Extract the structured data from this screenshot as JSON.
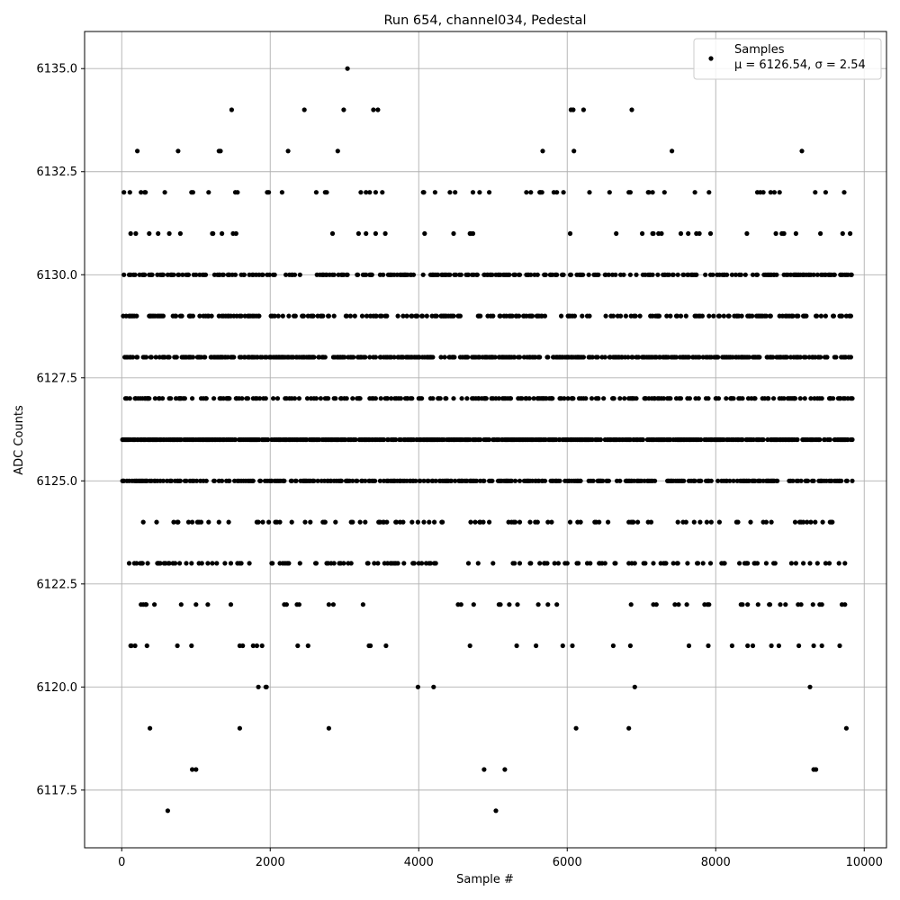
{
  "chart_data": {
    "type": "scatter",
    "title": "Run 654, channel034, Pedestal",
    "xlabel": "Sample #",
    "ylabel": "ADC Counts",
    "xlim": [
      -500,
      10300
    ],
    "ylim": [
      6116.1,
      6135.9
    ],
    "x_ticks": [
      0,
      2000,
      4000,
      6000,
      8000,
      10000
    ],
    "y_ticks": [
      6117.5,
      6120.0,
      6122.5,
      6125.0,
      6127.5,
      6130.0,
      6132.5,
      6135.0
    ],
    "x_tick_labels": [
      "0",
      "2000",
      "4000",
      "6000",
      "8000",
      "10000"
    ],
    "y_tick_labels": [
      "6117.5",
      "6120.0",
      "6122.5",
      "6125.0",
      "6127.5",
      "6130.0",
      "6132.5",
      "6135.0"
    ],
    "grid": true,
    "legend_position": "top-right",
    "marker_color": "#000000",
    "grid_color": "#b0b0b0",
    "series": [
      {
        "name": "Samples",
        "stats": {
          "mu": "6126.54",
          "sigma": "2.54"
        },
        "sample_range": [
          0,
          9840
        ],
        "level_density": {
          "6117": 0.0004,
          "6118": 0.0007,
          "6119": 0.006,
          "6120": 0.007,
          "6121": 0.035,
          "6122": 0.05,
          "6123": 0.13,
          "6124": 0.095,
          "6125": 0.35,
          "6126": 0.58,
          "6127": 0.24,
          "6128": 0.42,
          "6129": 0.25,
          "6130": 0.3,
          "6131": 0.05,
          "6132": 0.05,
          "6133": 0.012,
          "6134": 0.002,
          "6135": 0.0002
        },
        "points": [
          [
            620,
            6117
          ],
          [
            5040,
            6117
          ],
          [
            3040,
            6135
          ],
          [
            1480,
            6134
          ],
          [
            2460,
            6134
          ],
          [
            2990,
            6134
          ],
          [
            3390,
            6134
          ],
          [
            3450,
            6134
          ],
          [
            6050,
            6134
          ],
          [
            6080,
            6134
          ],
          [
            6220,
            6134
          ],
          [
            6870,
            6134
          ],
          [
            950,
            6118
          ],
          [
            1000,
            6118
          ],
          [
            4880,
            6118
          ],
          [
            5160,
            6118
          ],
          [
            9320,
            6118
          ],
          [
            9350,
            6118
          ]
        ]
      }
    ],
    "legend": {
      "label": "Samples",
      "stat_text": "μ = 6126.54, σ = 2.54"
    }
  }
}
